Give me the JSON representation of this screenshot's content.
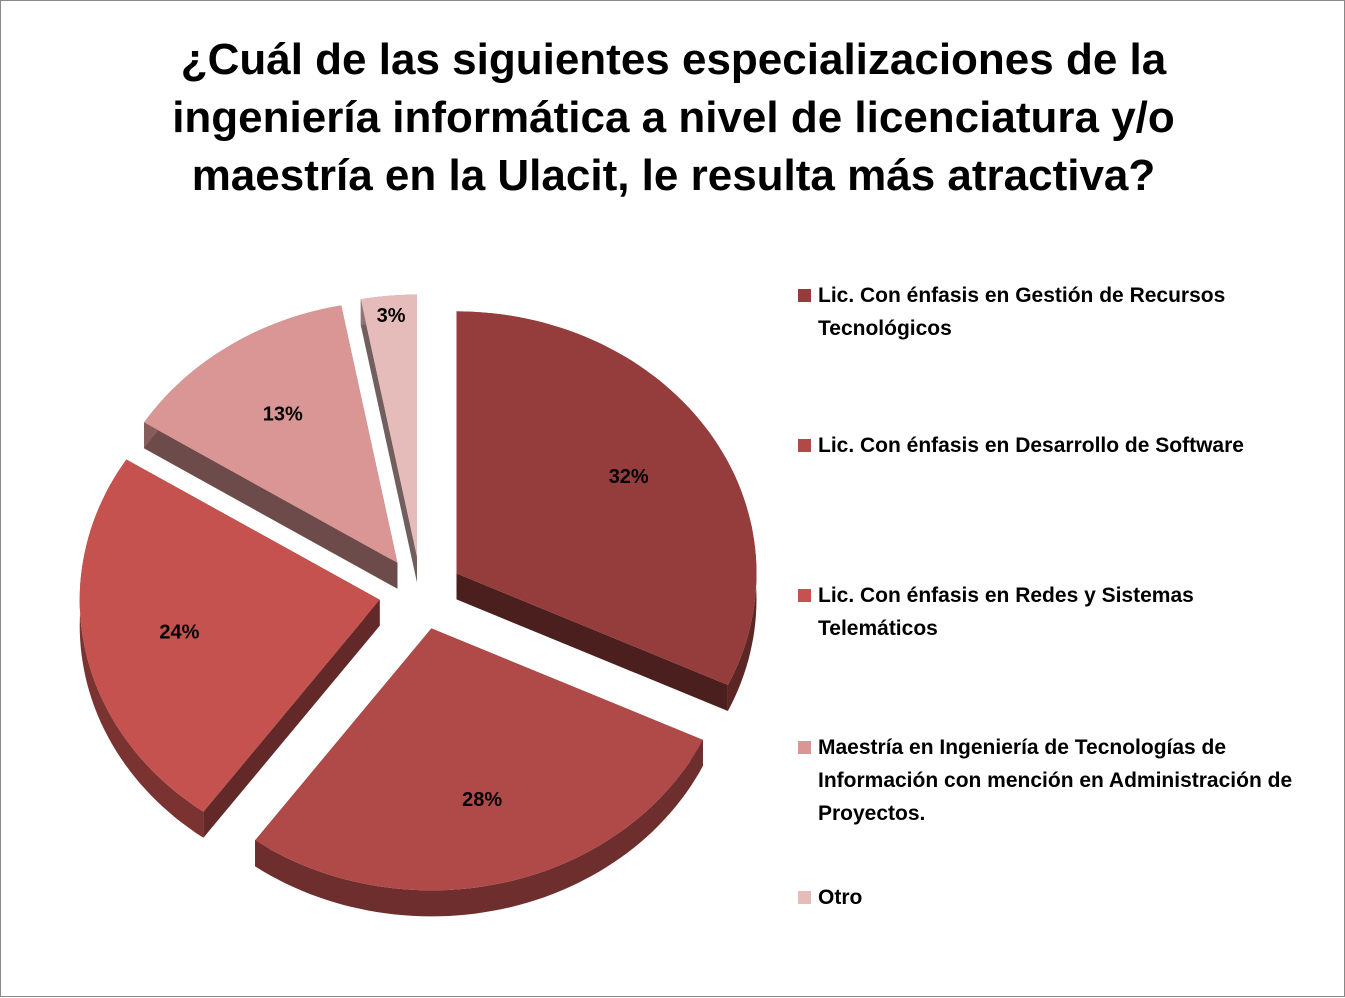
{
  "chart_data": {
    "type": "pie",
    "title": "¿Cuál de las siguientes especializaciones de la ingeniería informática a nivel de licenciatura y/o maestría en la Ulacit, le resulta más atractiva?",
    "categories": [
      "Lic. Con énfasis en Gestión de Recursos Tecnológicos",
      "Lic. Con énfasis en Desarrollo de Software",
      "Lic. Con énfasis en Redes y Sistemas Telemáticos",
      "Maestría en Ingeniería de Tecnologías de Información con mención en Administración de Proyectos.",
      "Otro"
    ],
    "values": [
      32,
      28,
      24,
      13,
      3
    ],
    "value_labels": [
      "32%",
      "28%",
      "24%",
      "13%",
      "3%"
    ],
    "colors": [
      "#953d3c",
      "#b04a48",
      "#c5524f",
      "#d99694",
      "#e6bcbb"
    ],
    "legend": "right"
  }
}
